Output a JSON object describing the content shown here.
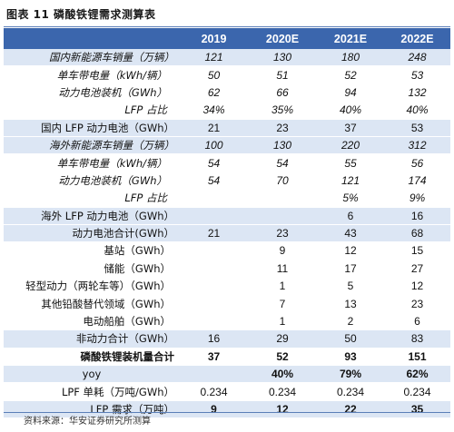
{
  "title": "图表 11  磷酸铁锂需求测算表",
  "source": "资料来源：华安证券研究所测算",
  "table": {
    "columns": [
      "",
      "2019",
      "2020E",
      "2021E",
      "2022E"
    ],
    "rows": [
      {
        "label": "国内新能源车销量（万辆）",
        "values": [
          "121",
          "130",
          "180",
          "248"
        ],
        "band": true,
        "italic": true
      },
      {
        "label": "单车带电量（kWh/辆）",
        "values": [
          "50",
          "51",
          "52",
          "53"
        ],
        "band": false,
        "italic": true
      },
      {
        "label": "动力电池装机（GWh）",
        "values": [
          "62",
          "66",
          "94",
          "132"
        ],
        "band": false,
        "italic": true
      },
      {
        "label": "LFP 占比",
        "values": [
          "34%",
          "35%",
          "40%",
          "40%"
        ],
        "band": false,
        "italic": true
      },
      {
        "label": "国内 LFP 动力电池（GWh）",
        "values": [
          "21",
          "23",
          "37",
          "53"
        ],
        "band": true,
        "italic": false
      },
      {
        "label": "海外新能源车销量（万辆）",
        "values": [
          "100",
          "130",
          "220",
          "312"
        ],
        "band": true,
        "italic": true
      },
      {
        "label": "单车带电量（kWh/辆）",
        "values": [
          "54",
          "54",
          "55",
          "56"
        ],
        "band": false,
        "italic": true
      },
      {
        "label": "动力电池装机（GWh）",
        "values": [
          "54",
          "70",
          "121",
          "174"
        ],
        "band": false,
        "italic": true
      },
      {
        "label": "LFP 占比",
        "values": [
          "",
          "",
          "5%",
          "9%"
        ],
        "band": false,
        "italic": true
      },
      {
        "label": "海外 LFP 动力电池（GWh）",
        "values": [
          "",
          "",
          "6",
          "16"
        ],
        "band": true,
        "italic": false
      },
      {
        "label": "动力电池合计(GWh）",
        "values": [
          "21",
          "23",
          "43",
          "68"
        ],
        "band": true,
        "italic": false
      },
      {
        "label": "基站（GWh）",
        "values": [
          "",
          "9",
          "12",
          "15"
        ],
        "band": false,
        "italic": false
      },
      {
        "label": "储能（GWh）",
        "values": [
          "",
          "11",
          "17",
          "27"
        ],
        "band": false,
        "italic": false
      },
      {
        "label": "轻型动力（两轮车等）（GWh）",
        "values": [
          "",
          "1",
          "5",
          "12"
        ],
        "band": false,
        "italic": false
      },
      {
        "label": "其他铅酸替代领域（GWh）",
        "values": [
          "",
          "7",
          "13",
          "23"
        ],
        "band": false,
        "italic": false
      },
      {
        "label": "电动船舶（GWh）",
        "values": [
          "",
          "1",
          "2",
          "6"
        ],
        "band": false,
        "italic": false
      },
      {
        "label": "非动力合计（GWh）",
        "values": [
          "16",
          "29",
          "50",
          "83"
        ],
        "band": true,
        "italic": false
      },
      {
        "label": "磷酸铁锂装机量合计",
        "values": [
          "37",
          "52",
          "93",
          "151"
        ],
        "band": false,
        "italic": false
      },
      {
        "label": "yoy",
        "values": [
          "",
          "40%",
          "79%",
          "62%"
        ],
        "band": true,
        "italic": false
      },
      {
        "label": "LPF 单耗（万吨/GWh）",
        "values": [
          "0.234",
          "0.234",
          "0.234",
          "0.234"
        ],
        "band": false,
        "italic": false
      },
      {
        "label": "LFP 需求（万吨）",
        "values": [
          "9",
          "12",
          "22",
          "35"
        ],
        "band": true,
        "italic": false
      }
    ]
  }
}
